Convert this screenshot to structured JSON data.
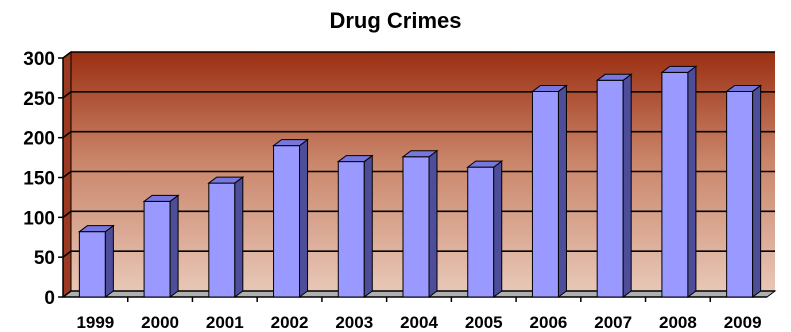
{
  "chart_data": {
    "type": "bar",
    "title": "Drug Crimes",
    "xlabel": "",
    "ylabel": "",
    "categories": [
      "1999",
      "2000",
      "2001",
      "2002",
      "2003",
      "2004",
      "2005",
      "2006",
      "2007",
      "2008",
      "2009"
    ],
    "values": [
      82,
      120,
      143,
      190,
      170,
      176,
      163,
      258,
      272,
      282,
      258
    ],
    "ylim": [
      0,
      300
    ],
    "yticks": [
      0,
      50,
      100,
      150,
      200,
      250,
      300
    ],
    "grid": true,
    "legend": "none",
    "colors": {
      "bar_front": "#9999ff",
      "bar_side": "#4d4d99",
      "bar_top": "#7777dd",
      "background_top": "#9b2f12",
      "background_bottom": "#e8c7b7"
    }
  }
}
